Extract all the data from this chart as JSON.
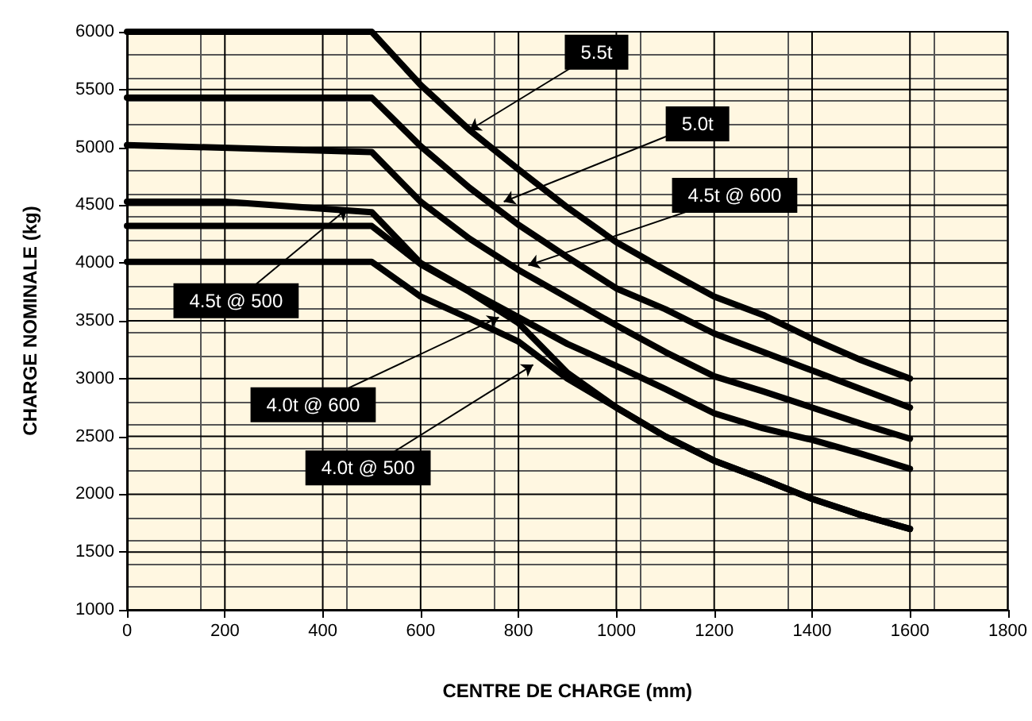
{
  "chart_data": {
    "type": "line",
    "xlabel": "CENTRE DE CHARGE (mm)",
    "ylabel": "CHARGE NOMINALE (kg)",
    "xlim": [
      0,
      1800
    ],
    "xticks": [
      0,
      200,
      400,
      600,
      800,
      1000,
      1200,
      1400,
      1600,
      1800
    ],
    "ylim": [
      1000,
      6000
    ],
    "yticks": [
      1000,
      1500,
      2000,
      2500,
      3000,
      3500,
      4000,
      4500,
      5000,
      5500,
      6000
    ],
    "grid": true,
    "line_style": "solid",
    "series": [
      {
        "color": "#000000",
        "x": [
          0,
          500,
          600,
          700,
          800,
          900,
          1000,
          1100,
          1200,
          1300,
          1400,
          1500,
          1600
        ],
        "values": [
          6000,
          6000,
          5540,
          5150,
          4810,
          4480,
          4180,
          3940,
          3710,
          3550,
          3345,
          3160,
          3000
        ]
      },
      {
        "color": "#000000",
        "x": [
          0,
          500,
          600,
          700,
          800,
          900,
          1000,
          1100,
          1200,
          1300,
          1400,
          1500,
          1600
        ],
        "values": [
          5430,
          5430,
          5010,
          4650,
          4330,
          4050,
          3780,
          3600,
          3390,
          3230,
          3070,
          2910,
          2750
        ]
      },
      {
        "color": "#000000",
        "x": [
          0,
          500,
          600,
          700,
          800,
          900,
          1000,
          1100,
          1200,
          1300,
          1400,
          1500,
          1600
        ],
        "values": [
          5020,
          4960,
          4530,
          4210,
          3940,
          3700,
          3460,
          3230,
          3020,
          2890,
          2750,
          2610,
          2480
        ]
      },
      {
        "color": "#000000",
        "x": [
          0,
          200,
          500,
          600,
          700,
          800,
          900,
          1000,
          1100,
          1200,
          1300,
          1400,
          1500,
          1600
        ],
        "values": [
          4530,
          4530,
          4440,
          4000,
          3760,
          3530,
          3300,
          3110,
          2910,
          2700,
          2570,
          2470,
          2350,
          2220
        ]
      },
      {
        "color": "#000000",
        "x": [
          0,
          500,
          600,
          700,
          800,
          900,
          1000,
          1100,
          1200,
          1300,
          1400,
          1500,
          1600
        ],
        "values": [
          4320,
          4320,
          3990,
          3750,
          3480,
          3050,
          2750,
          2500,
          2290,
          2130,
          1960,
          1820,
          1700
        ]
      },
      {
        "color": "#000000",
        "x": [
          0,
          500,
          600,
          700,
          800,
          900,
          1000,
          1100,
          1200,
          1300,
          1400,
          1500,
          1600
        ],
        "values": [
          4010,
          4010,
          3710,
          3520,
          3320,
          3000,
          2750,
          2500,
          2290,
          2130,
          1960,
          1820,
          1700
        ]
      }
    ],
    "annotations": [
      {
        "text": "5.5t",
        "x": 700,
        "y": 5150
      },
      {
        "text": "5.0t",
        "x": 770,
        "y": 4530
      },
      {
        "text": "4.5t @ 600",
        "x": 820,
        "y": 3980
      },
      {
        "text": "4.5t @ 500",
        "x": 450,
        "y": 4470
      },
      {
        "text": "4.0t @ 600",
        "x": 760,
        "y": 3530
      },
      {
        "text": "4.0t @ 500",
        "x": 830,
        "y": 3120
      }
    ]
  }
}
